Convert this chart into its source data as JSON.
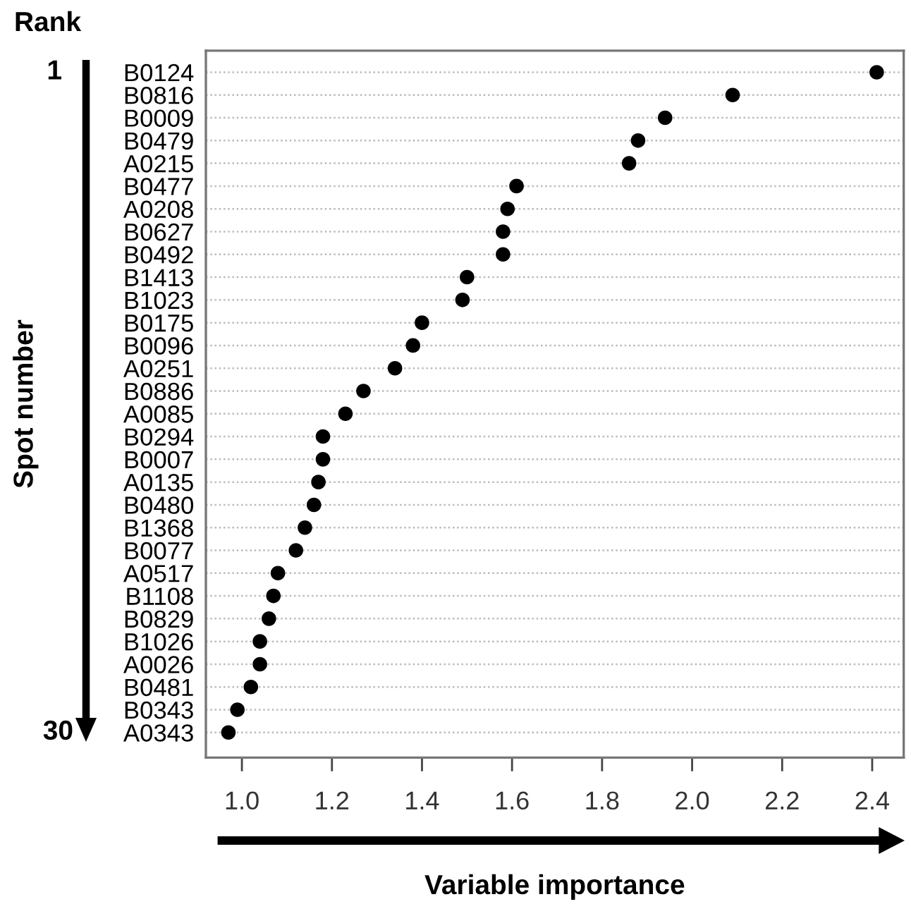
{
  "chart_data": {
    "type": "scatter",
    "orientation": "horizontal",
    "xlabel": "Variable importance",
    "ylabel": "Spot number",
    "annotations": [
      "Rank",
      "1",
      "30"
    ],
    "categories": [
      "B0124",
      "B0816",
      "B0009",
      "B0479",
      "A0215",
      "B0477",
      "A0208",
      "B0627",
      "B0492",
      "B1413",
      "B1023",
      "B0175",
      "B0096",
      "A0251",
      "B0886",
      "A0085",
      "B0294",
      "B0007",
      "A0135",
      "B0480",
      "B1368",
      "B0077",
      "A0517",
      "B1108",
      "B0829",
      "B1026",
      "A0026",
      "B0481",
      "B0343",
      "A0343"
    ],
    "series": [
      {
        "color": "#000000",
        "values": [
          2.41,
          2.09,
          1.94,
          1.88,
          1.86,
          1.61,
          1.59,
          1.58,
          1.58,
          1.5,
          1.49,
          1.4,
          1.38,
          1.34,
          1.27,
          1.23,
          1.18,
          1.18,
          1.17,
          1.16,
          1.14,
          1.12,
          1.08,
          1.07,
          1.06,
          1.04,
          1.04,
          1.02,
          0.99,
          0.97
        ]
      }
    ],
    "xlim": [
      0.92,
      2.47
    ],
    "xticks": [
      {
        "value": 1.0,
        "label": "1.0"
      },
      {
        "value": 1.2,
        "label": "1.2"
      },
      {
        "value": 1.4,
        "label": "1.4"
      },
      {
        "value": 1.6,
        "label": "1.6"
      },
      {
        "value": 1.8,
        "label": "1.8"
      },
      {
        "value": 2.0,
        "label": "2.0"
      },
      {
        "value": 2.2,
        "label": "2.2"
      },
      {
        "value": 2.4,
        "label": "2.4"
      }
    ],
    "grid": "y",
    "marker": "circle"
  }
}
